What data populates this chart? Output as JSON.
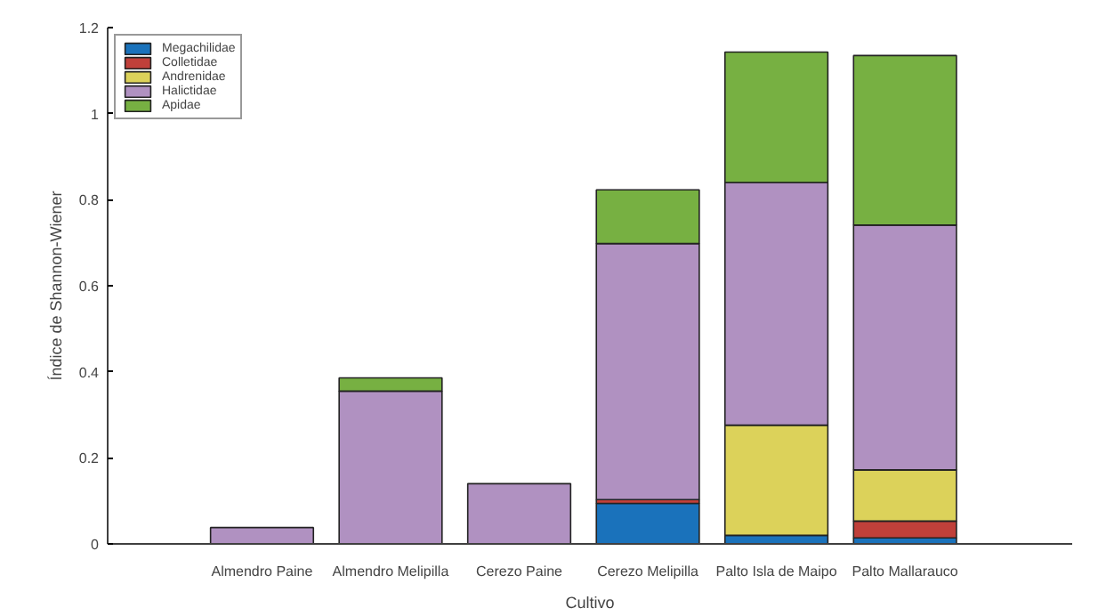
{
  "chart_data": {
    "type": "bar",
    "stacked": true,
    "xlabel": "Cultivo",
    "ylabel": "Índice de Shannon-Wiener",
    "categories": [
      "Almendro Paine",
      "Almendro Melipilla",
      "Cerezo Paine",
      "Cerezo Melipilla",
      "Palto Isla de Maipo",
      "Palto Mallarauco"
    ],
    "series": [
      {
        "name": "Megachilidae",
        "color": "#1a72bb",
        "values": [
          0,
          null,
          0,
          0.094,
          0.02,
          0.014
        ]
      },
      {
        "name": "Colletidae",
        "color": "#c0403a",
        "values": [
          0,
          0,
          0,
          0.009,
          null,
          0.039
        ]
      },
      {
        "name": "Andrenidae",
        "color": "#dcd25a",
        "values": [
          0,
          0,
          0,
          0,
          0.256,
          0.119
        ]
      },
      {
        "name": "Halictidae",
        "color": "#b091c1",
        "values": [
          0.038,
          0.355,
          0.14,
          0.595,
          0.564,
          0.569
        ]
      },
      {
        "name": "Apidae",
        "color": "#77b042",
        "values": [
          0,
          0.031,
          0,
          0.125,
          0.303,
          0.394
        ]
      }
    ],
    "ylim": [
      0,
      1.2
    ],
    "yticks": [
      0,
      0.2,
      0.4,
      0.6,
      0.8,
      1,
      1.2
    ],
    "legend": "top left",
    "grid": false
  }
}
